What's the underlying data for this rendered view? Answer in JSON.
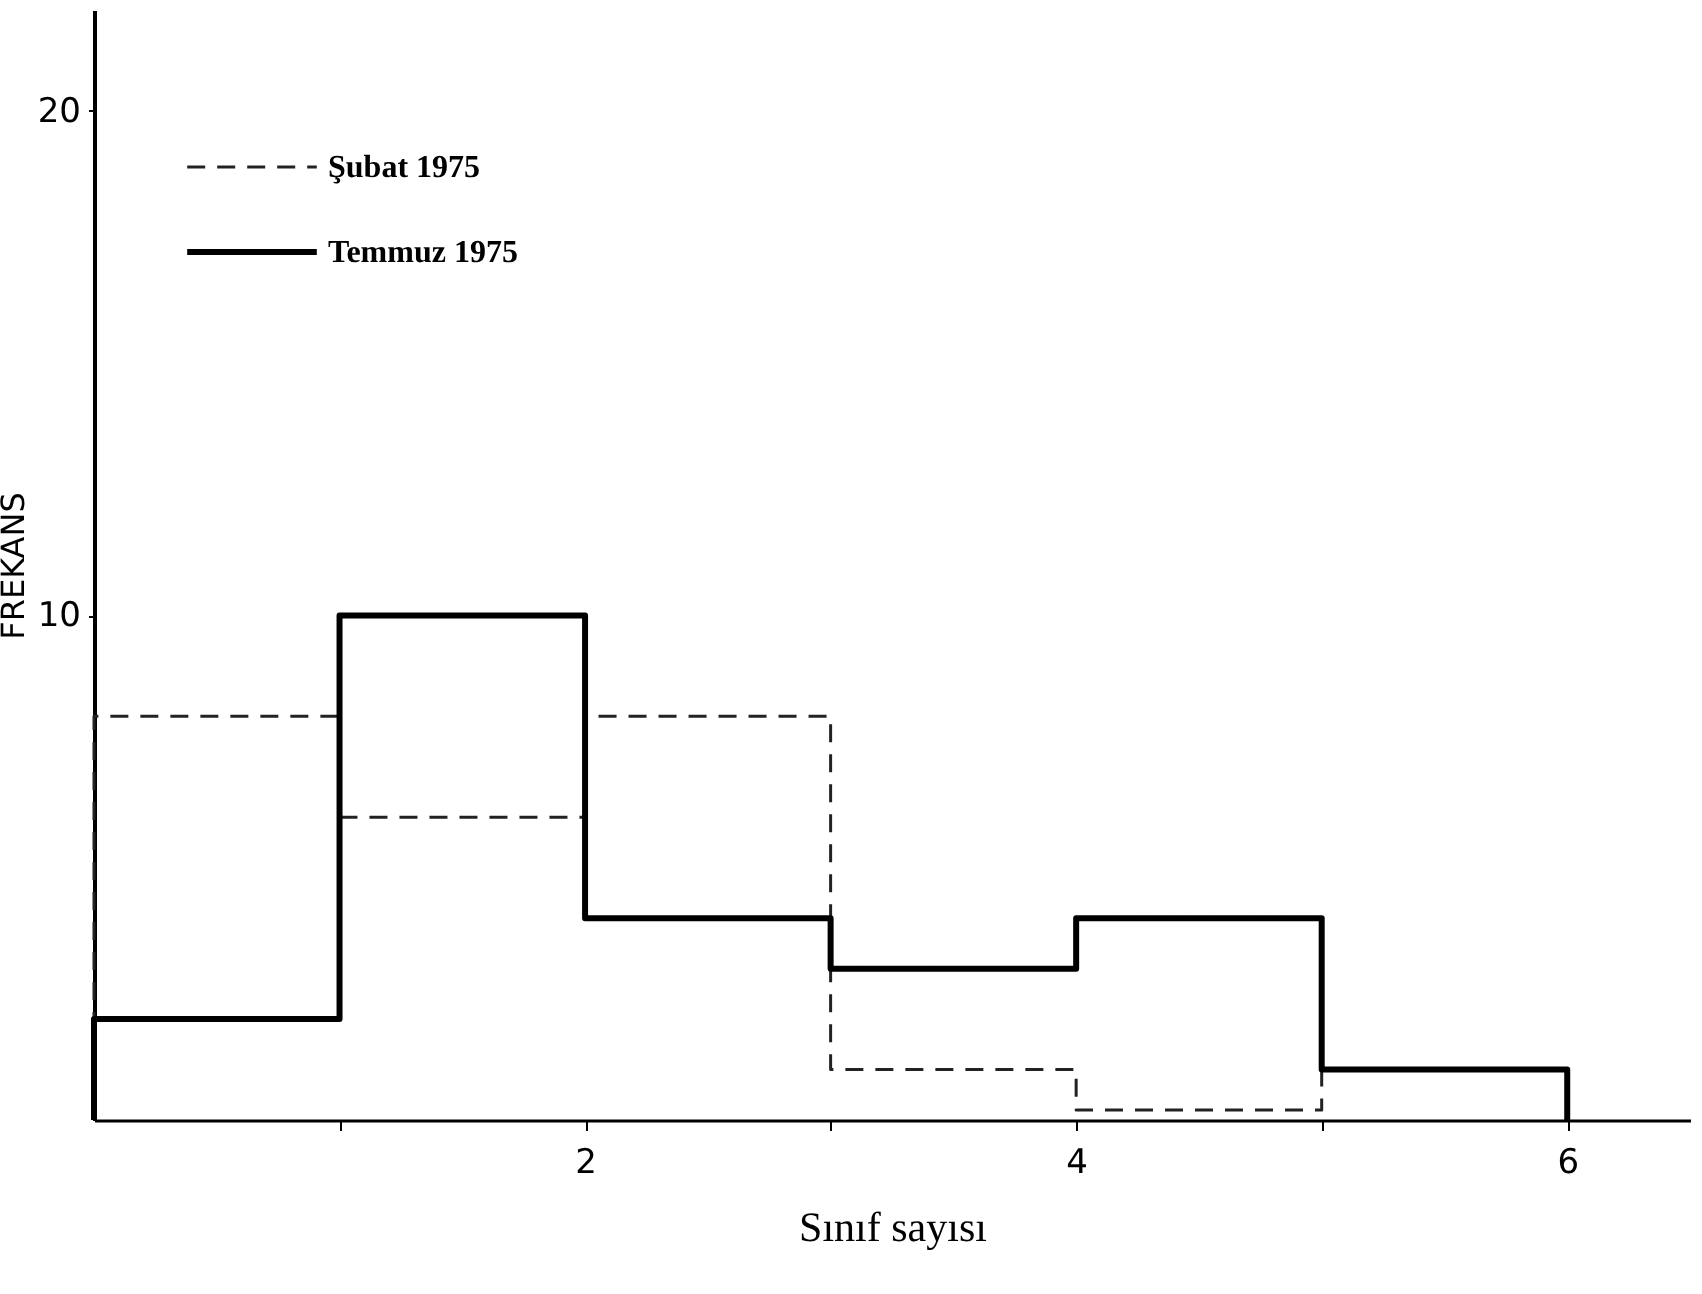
{
  "chart_data": {
    "type": "histogram",
    "xlabel": "Sınıf sayısı",
    "ylabel": "FREKANS",
    "bins": [
      0,
      1,
      2,
      3,
      4,
      5,
      6
    ],
    "series": [
      {
        "name": "Şubat 1975",
        "color": "#222222",
        "line_style": "dashed",
        "values": [
          8,
          6,
          8,
          1,
          0.2,
          1
        ]
      },
      {
        "name": "Temmuz 1975",
        "color": "#000000",
        "line_style": "solid",
        "values": [
          2,
          10,
          4,
          3,
          4,
          1
        ]
      }
    ],
    "xlim": [
      0,
      6.5
    ],
    "xticks": [
      {
        "value": 1,
        "label": null
      },
      2,
      {
        "value": 3,
        "label": null
      },
      4,
      {
        "value": 5,
        "label": null
      },
      6
    ],
    "ylim": [
      0,
      22
    ],
    "yticks": [
      10,
      20
    ],
    "grid": false,
    "legend": "top left"
  }
}
